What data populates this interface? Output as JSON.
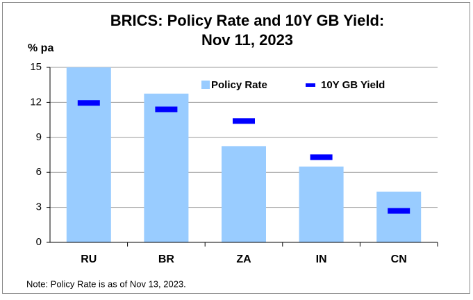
{
  "chart_data": {
    "type": "bar",
    "title": [
      "BRICS: Policy Rate and 10Y GB Yield:",
      "Nov 11, 2023"
    ],
    "y_label": "% pa",
    "categories": [
      "RU",
      "BR",
      "ZA",
      "IN",
      "CN"
    ],
    "series": [
      {
        "name": "Policy Rate",
        "color": "#99ccff",
        "values": [
          15.0,
          12.75,
          8.25,
          6.5,
          4.35
        ]
      },
      {
        "name": "10Y GB Yield",
        "color": "#0000ff",
        "marker": "dash",
        "values": [
          11.95,
          11.4,
          10.4,
          7.3,
          2.7
        ]
      }
    ],
    "ylim": [
      0,
      15
    ],
    "yticks": [
      0,
      3,
      6,
      9,
      12,
      15
    ],
    "grid": true,
    "note": "Note: Policy Rate is as of Nov 13, 2023."
  }
}
